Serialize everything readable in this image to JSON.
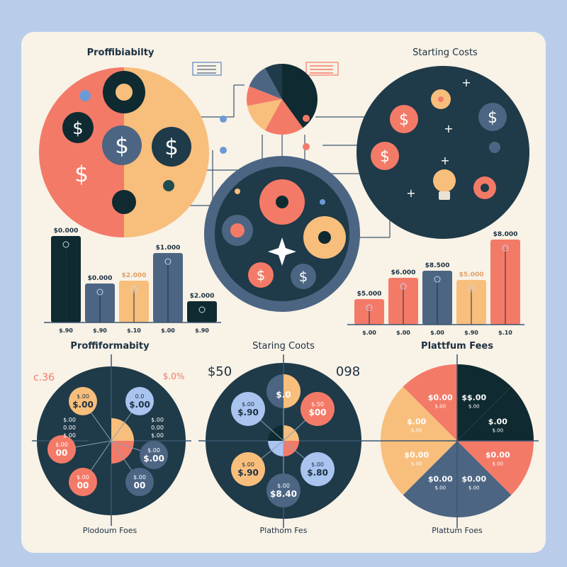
{
  "colors": {
    "background": "#b9cdea",
    "card": "#f8f2e7",
    "dark": "#0f2a30",
    "navy": "#1f3a48",
    "slate": "#4c6583",
    "coral": "#f47a68",
    "peach": "#f8be7c",
    "light_blue": "#a9c4ef",
    "text": "#1c3040"
  },
  "top": {
    "left_title": "Proffibiabilty",
    "right_title": "Starting Costs",
    "center_pie": [
      {
        "value": 40,
        "color": "dark"
      },
      {
        "value": 18,
        "color": "coral"
      },
      {
        "value": 14,
        "color": "peach"
      },
      {
        "value": 9,
        "color": "coral"
      },
      {
        "value": 11,
        "color": "slate"
      },
      {
        "value": 8,
        "color": "navy"
      }
    ],
    "dollar_icon": "$"
  },
  "left_bars": {
    "bars": [
      {
        "value": 122,
        "top_label": "$0.000",
        "bottom_label": "$.90",
        "color": "dark"
      },
      {
        "value": 55,
        "top_label": "$0.000",
        "bottom_label": "$.90",
        "color": "slate"
      },
      {
        "value": 59,
        "top_label": "$2.000",
        "bottom_label": "$.10",
        "color": "peach"
      },
      {
        "value": 98,
        "top_label": "$1.000",
        "bottom_label": "$.00",
        "color": "slate"
      },
      {
        "value": 30,
        "top_label": "$2.000",
        "bottom_label": "$.90",
        "color": "dark"
      }
    ]
  },
  "right_bars": {
    "bars": [
      {
        "value": 36,
        "top_label": "$5.000",
        "bottom_label": "$.00",
        "color": "coral"
      },
      {
        "value": 66,
        "top_label": "$6.000",
        "bottom_label": "$.00",
        "color": "coral"
      },
      {
        "value": 76,
        "top_label": "$8.500",
        "bottom_label": "$.00",
        "color": "slate"
      },
      {
        "value": 63,
        "top_label": "$5.000",
        "bottom_label": "$.90",
        "color": "peach"
      },
      {
        "value": 120,
        "top_label": "$8.000",
        "bottom_label": "$.10",
        "color": "coral"
      }
    ]
  },
  "bottom": {
    "panels": [
      {
        "title": "Proffiformabity",
        "footer": "Plodoum Foes",
        "corner_left": "c.36",
        "corner_right": "$.0%",
        "side_left": [
          "$.00",
          "0.00",
          "$.00"
        ],
        "side_right": [
          "$.00",
          "0.00",
          "$.00"
        ],
        "bubbles": [
          {
            "main": "$.00",
            "sub": "$.00",
            "color": "peach"
          },
          {
            "main": "$.00",
            "sub": "0.0",
            "color": "light_blue"
          },
          {
            "main": "$.00",
            "sub": "$.00",
            "color": "slate"
          },
          {
            "main": "00",
            "sub": "$.00",
            "color": "slate"
          },
          {
            "main": "00",
            "sub": "$.00",
            "color": "coral"
          },
          {
            "main": "00",
            "sub": "$.00",
            "color": "coral"
          }
        ]
      },
      {
        "title": "Staring Coots",
        "footer": "Plathom Fes",
        "corner_left": "$50",
        "corner_right": "098",
        "bubbles": [
          {
            "main": "$.0",
            "sub": "",
            "color": "navy_peach"
          },
          {
            "main": "$00",
            "sub": "$.50",
            "color": "coral"
          },
          {
            "main": "$.80",
            "sub": "$.00",
            "color": "light_blue"
          },
          {
            "main": "$8.40",
            "sub": "$.00",
            "color": "slate"
          },
          {
            "main": "$.90",
            "sub": "$.00",
            "color": "peach"
          },
          {
            "main": "$.90",
            "sub": "$.00",
            "color": "light_blue"
          }
        ]
      },
      {
        "title": "Plattfum Fees",
        "footer": "Plattum Foes",
        "slices": [
          {
            "value": 12.5,
            "color": "dark",
            "main": "$$.00",
            "sub": "$.00"
          },
          {
            "value": 12.5,
            "color": "dark",
            "main": "$.00",
            "sub": "$.00"
          },
          {
            "value": 12.5,
            "color": "coral",
            "main": "$0.00",
            "sub": "$.00"
          },
          {
            "value": 12.5,
            "color": "slate",
            "main": "$0.00",
            "sub": "$.00"
          },
          {
            "value": 12.5,
            "color": "slate",
            "main": "$0.00",
            "sub": "$.00"
          },
          {
            "value": 12.5,
            "color": "peach",
            "main": "$0.00",
            "sub": "$.00"
          },
          {
            "value": 12.5,
            "color": "peach",
            "main": "$.00",
            "sub": "$.00"
          },
          {
            "value": 12.5,
            "color": "coral",
            "main": "$0.00",
            "sub": "$.00"
          }
        ]
      }
    ]
  }
}
